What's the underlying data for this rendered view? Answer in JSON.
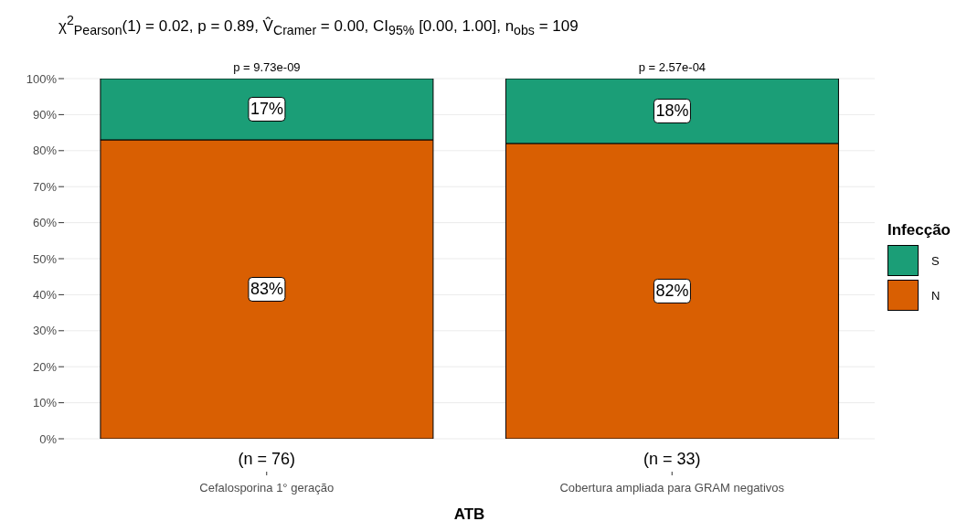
{
  "chart_data": {
    "type": "bar",
    "stacked": true,
    "title": "χ$^{2}$$_{Pearson}$(1) = 0.02, p = 0.89, V̂$_{Cramer}$ = 0.00, CI$_{95%}$ [0.00, 1.00], n$_{obs}$ = 109",
    "xlabel": "ATB",
    "legend_title": "Infecção",
    "legend": "right",
    "grid": "y",
    "categories": [
      "Cefalosporina 1° geração",
      "Cobertura ampliada para GRAM negativos"
    ],
    "series": [
      {
        "name": "N",
        "color": "#d95f02",
        "values": [
          83,
          82
        ],
        "value_labels": [
          "83%",
          "82%"
        ]
      },
      {
        "name": "S",
        "color": "#1b9e77",
        "values": [
          17,
          18
        ],
        "value_labels": [
          "17%",
          "18%"
        ]
      }
    ],
    "ylim": [
      0,
      100
    ],
    "yticks": [
      {
        "value": 0,
        "label": "0%"
      },
      {
        "value": 10,
        "label": "10%"
      },
      {
        "value": 20,
        "label": "20%"
      },
      {
        "value": 30,
        "label": "30%"
      },
      {
        "value": 40,
        "label": "40%"
      },
      {
        "value": 50,
        "label": "50%"
      },
      {
        "value": 60,
        "label": "60%"
      },
      {
        "value": 70,
        "label": "70%"
      },
      {
        "value": 80,
        "label": "80%"
      },
      {
        "value": 90,
        "label": "90%"
      },
      {
        "value": 100,
        "label": "100%"
      }
    ],
    "annotations": [
      {
        "text": "p = 9.73e-09",
        "x": "Cefalosporina 1° geração",
        "y": 100
      },
      {
        "text": "p = 2.57e-04",
        "x": "Cobertura ampliada para GRAM negativos",
        "y": 100
      },
      {
        "text": "(n = 76)",
        "x": "Cefalosporina 1° geração"
      },
      {
        "text": "(n = 33)",
        "x": "Cobertura ampliada para GRAM negativos"
      }
    ]
  }
}
